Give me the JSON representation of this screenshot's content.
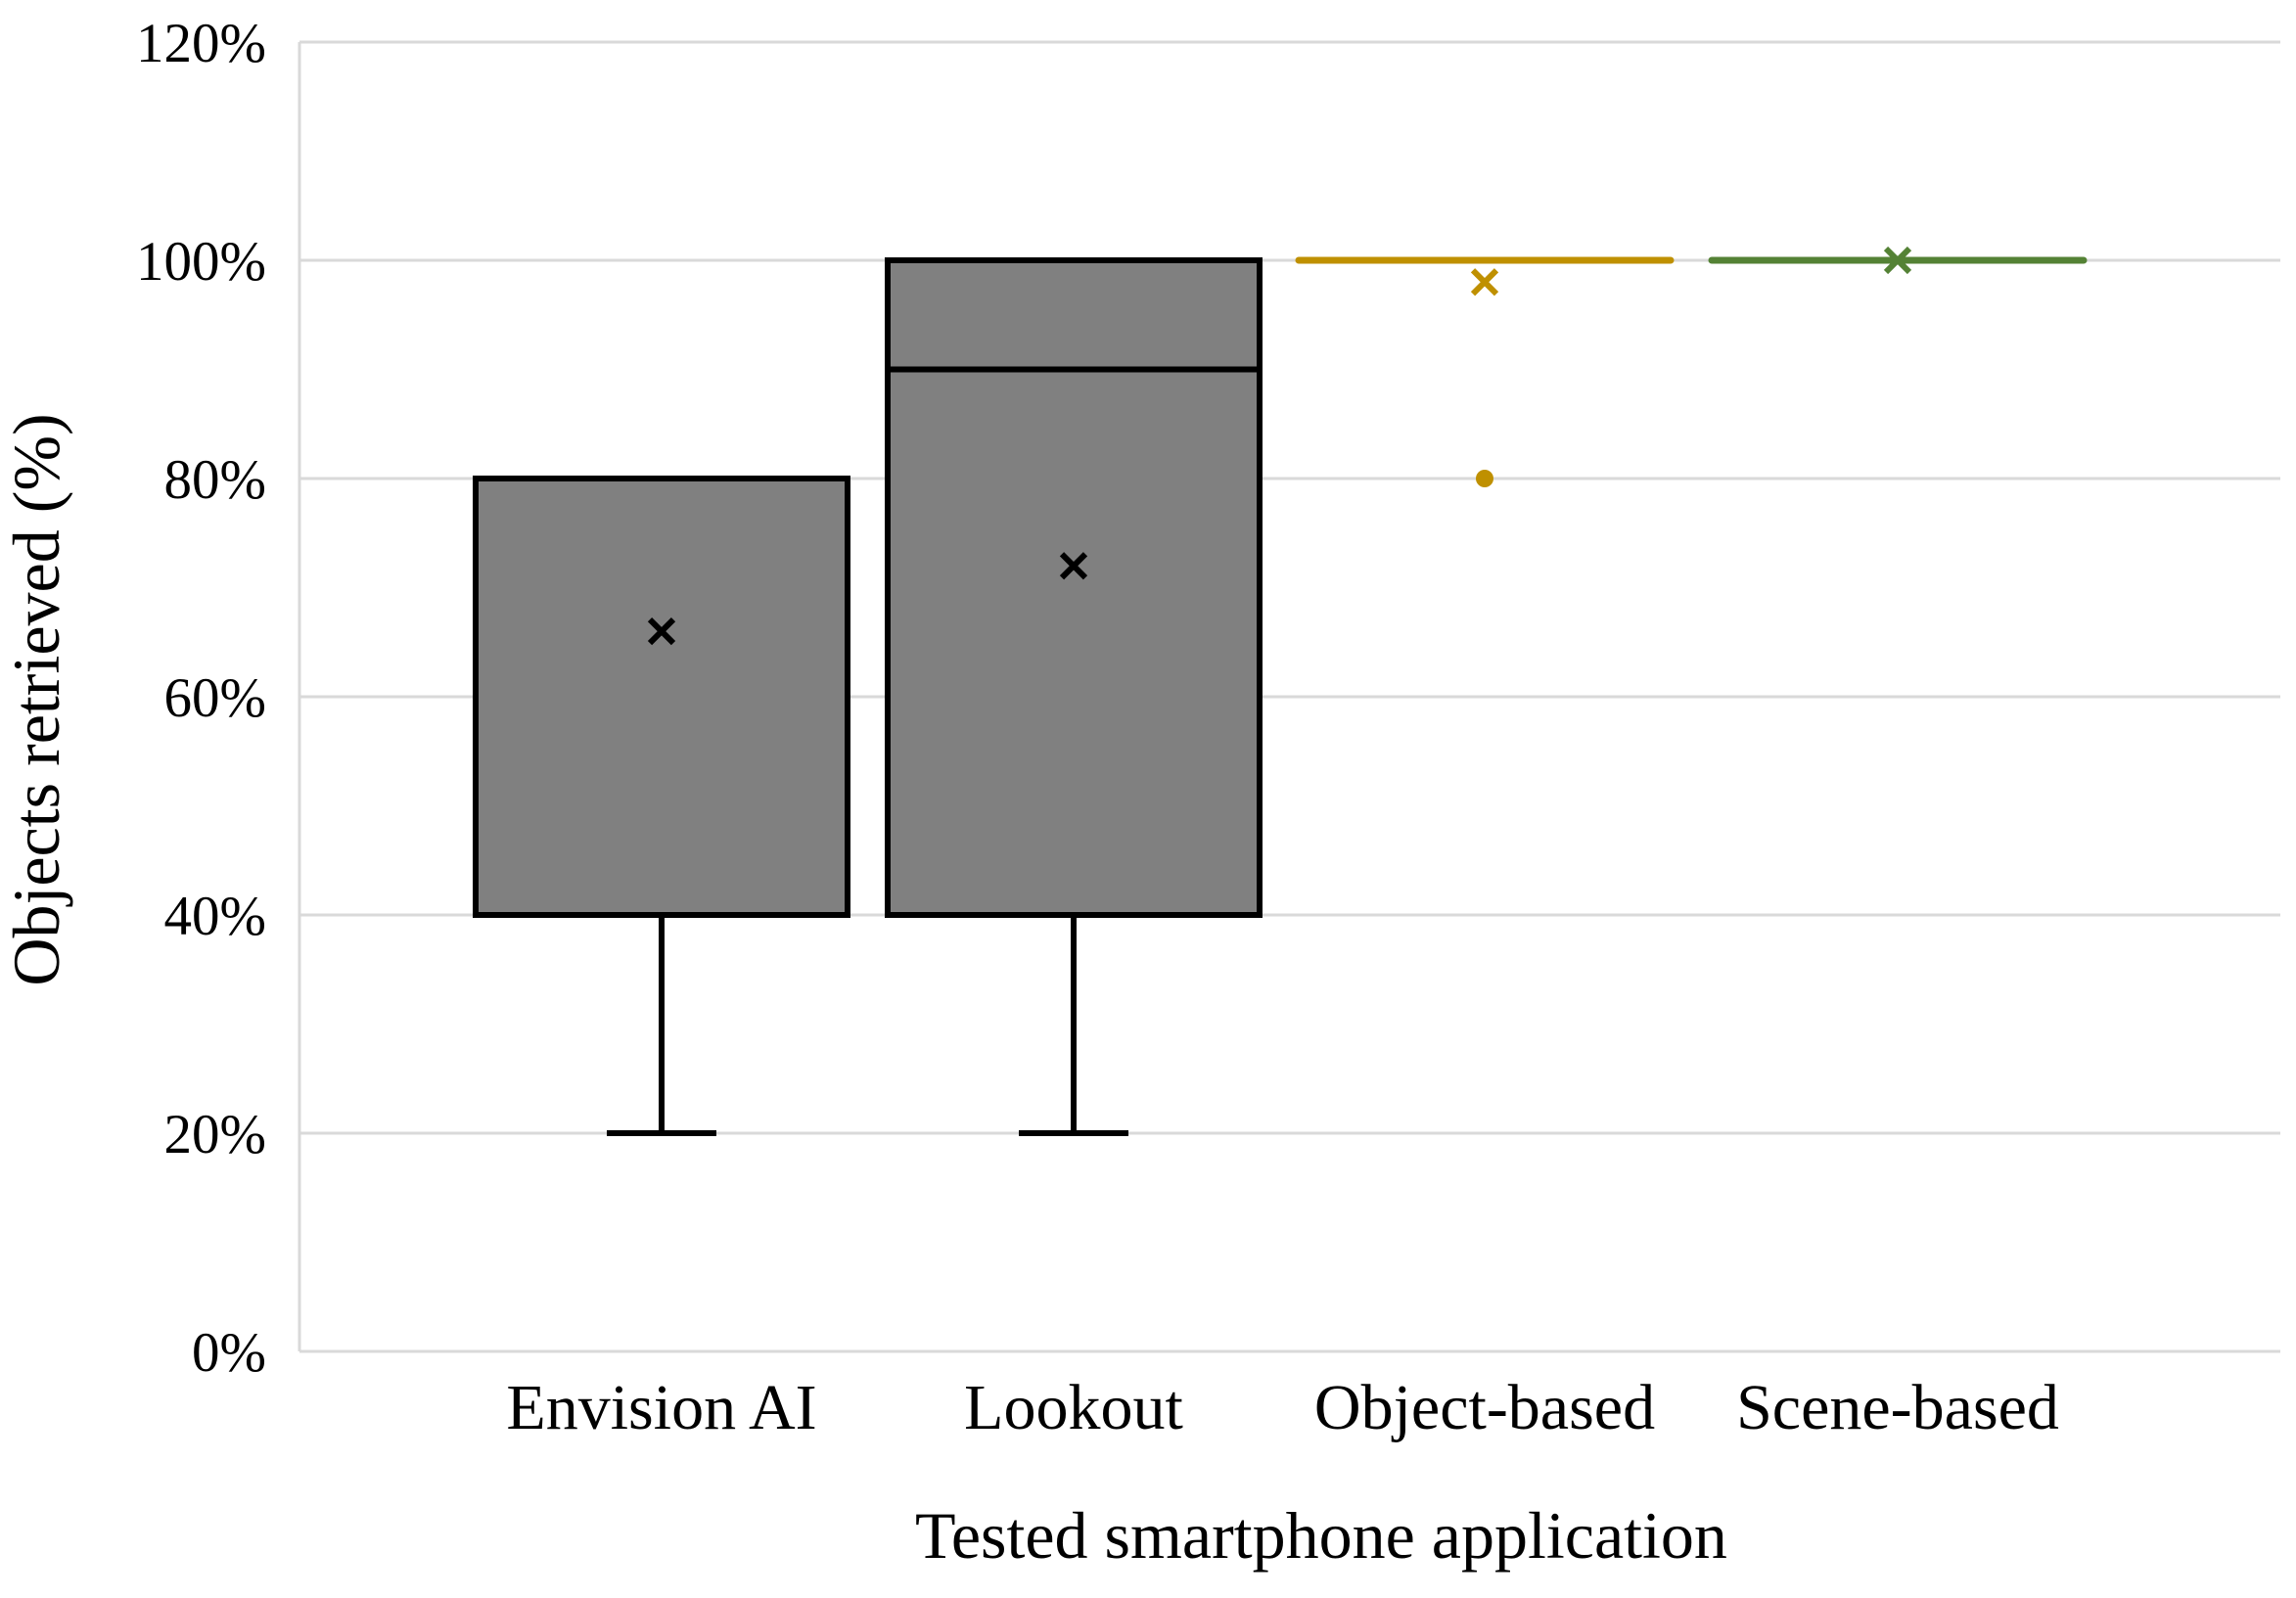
{
  "chart_data": {
    "type": "box",
    "xlabel": "Tested smartphone application",
    "ylabel": "Objects retrieved (%)",
    "ylim": [
      0,
      120
    ],
    "yticks": [
      "0%",
      "20%",
      "40%",
      "60%",
      "80%",
      "100%",
      "120%"
    ],
    "yticks_values": [
      0,
      20,
      40,
      60,
      80,
      100,
      120
    ],
    "grid": true,
    "categories": [
      "Envision AI",
      "Lookout",
      "Object-based",
      "Scene-based"
    ],
    "boxes": [
      {
        "category": "Envision AI",
        "min": 20,
        "q1": 40,
        "median": 80,
        "q3": 80,
        "max": 80,
        "mean": 66,
        "outliers": [],
        "color": "#808080"
      },
      {
        "category": "Lookout",
        "min": 20,
        "q1": 40,
        "median": 90,
        "q3": 100,
        "max": 100,
        "mean": 72,
        "outliers": [],
        "color": "#808080"
      },
      {
        "category": "Object-based",
        "min": 100,
        "q1": 100,
        "median": 100,
        "q3": 100,
        "max": 100,
        "mean": 98,
        "outliers": [
          80
        ],
        "color": "#BF9000"
      },
      {
        "category": "Scene-based",
        "min": 100,
        "q1": 100,
        "median": 100,
        "q3": 100,
        "max": 100,
        "mean": 100,
        "outliers": [],
        "color": "#548235"
      }
    ]
  }
}
